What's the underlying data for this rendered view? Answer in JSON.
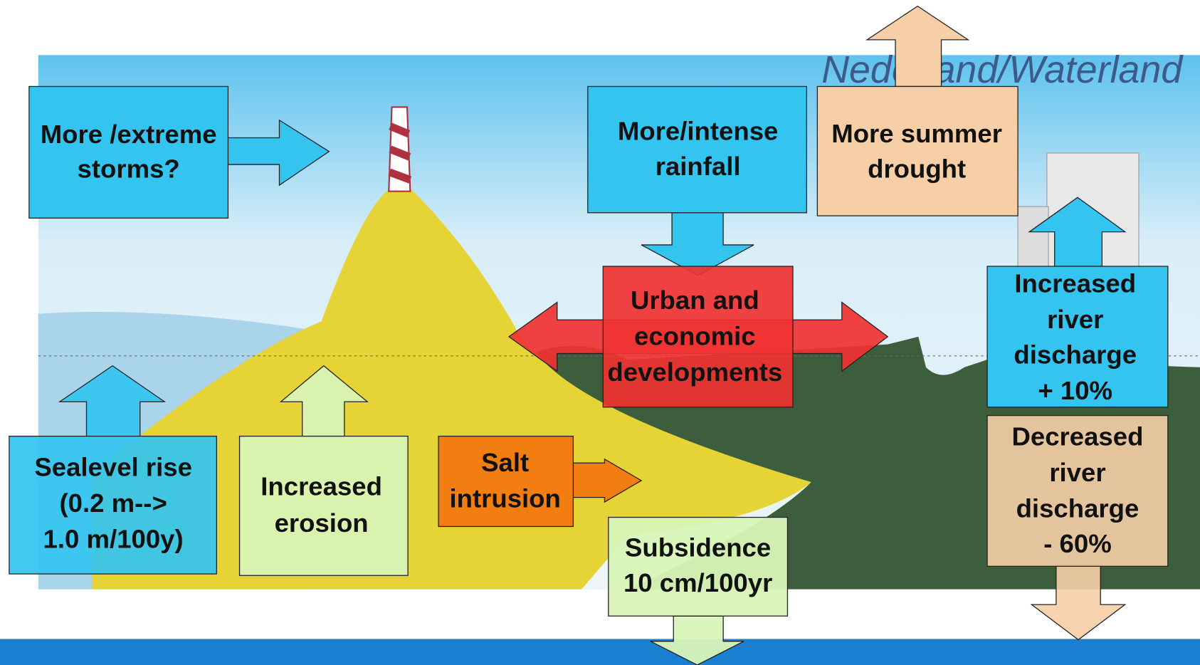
{
  "title": "Nederland/Waterland",
  "boxes": [
    {
      "lines": [
        "More /extreme",
        "storms?"
      ]
    },
    {
      "lines": [
        "More/intense",
        "rainfall"
      ]
    },
    {
      "lines": [
        "More summer",
        "drought"
      ]
    },
    {
      "lines": [
        "Urban and",
        "economic",
        "developments"
      ]
    },
    {
      "lines": [
        "Increased",
        "river",
        "discharge",
        "+ 10%"
      ]
    },
    {
      "lines": [
        "Decreased",
        "river",
        "discharge",
        "- 60%"
      ]
    },
    {
      "lines": [
        "Sealevel rise",
        "(0.2 m-->",
        "1.0 m/100y)"
      ]
    },
    {
      "lines": [
        "Increased",
        "erosion"
      ]
    },
    {
      "lines": [
        "Salt",
        "intrusion"
      ]
    },
    {
      "lines": [
        "Subsidence",
        "10 cm/100yr"
      ]
    }
  ]
}
